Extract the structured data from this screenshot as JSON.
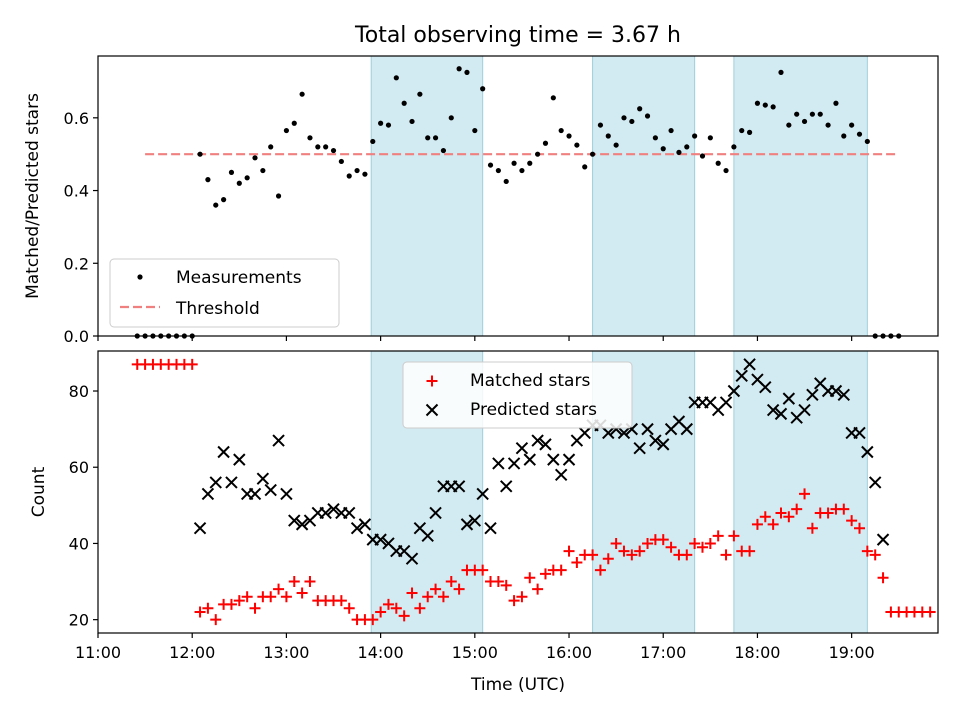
{
  "title": "Total observing time = 3.67 h",
  "chart_data": [
    {
      "type": "scatter",
      "ylabel": "Matched/Predicted stars",
      "xlim": [
        "11:00",
        "19:55"
      ],
      "ylim": [
        0,
        0.77
      ],
      "yticks": [
        0.0,
        0.2,
        0.4,
        0.6
      ],
      "yticklabels": [
        "0.0",
        "0.2",
        "0.4",
        "0.6"
      ],
      "grid": false,
      "legend_position": "lower-left",
      "legend": [
        "Measurements",
        "Threshold"
      ],
      "colors": {
        "measurements": "#000000",
        "threshold": "#f08080",
        "band": "#add8e6"
      },
      "threshold": {
        "value": 0.5,
        "x": [
          "11:30",
          "19:30"
        ]
      },
      "observing_windows": [
        [
          "13:54",
          "15:05"
        ],
        [
          "16:15",
          "17:20"
        ],
        [
          "17:45",
          "19:10"
        ]
      ],
      "measurements": [
        [
          "11:25",
          0.0
        ],
        [
          "11:30",
          0.0
        ],
        [
          "11:35",
          0.0
        ],
        [
          "11:40",
          0.0
        ],
        [
          "11:45",
          0.0
        ],
        [
          "11:50",
          0.0
        ],
        [
          "11:55",
          0.0
        ],
        [
          "12:00",
          0.0
        ],
        [
          "12:05",
          0.5
        ],
        [
          "12:10",
          0.43
        ],
        [
          "12:15",
          0.36
        ],
        [
          "12:20",
          0.375
        ],
        [
          "12:25",
          0.45
        ],
        [
          "12:30",
          0.42
        ],
        [
          "12:35",
          0.435
        ],
        [
          "12:40",
          0.49
        ],
        [
          "12:45",
          0.455
        ],
        [
          "12:50",
          0.52
        ],
        [
          "12:55",
          0.385
        ],
        [
          "13:00",
          0.565
        ],
        [
          "13:05",
          0.585
        ],
        [
          "13:10",
          0.665
        ],
        [
          "13:15",
          0.545
        ],
        [
          "13:20",
          0.52
        ],
        [
          "13:25",
          0.52
        ],
        [
          "13:30",
          0.51
        ],
        [
          "13:35",
          0.48
        ],
        [
          "13:40",
          0.44
        ],
        [
          "13:45",
          0.455
        ],
        [
          "13:50",
          0.445
        ],
        [
          "13:55",
          0.535
        ],
        [
          "14:00",
          0.585
        ],
        [
          "14:05",
          0.58
        ],
        [
          "14:10",
          0.71
        ],
        [
          "14:15",
          0.64
        ],
        [
          "14:20",
          0.59
        ],
        [
          "14:25",
          0.665
        ],
        [
          "14:30",
          0.545
        ],
        [
          "14:35",
          0.545
        ],
        [
          "14:40",
          0.51
        ],
        [
          "14:45",
          0.6
        ],
        [
          "14:50",
          0.735
        ],
        [
          "14:55",
          0.725
        ],
        [
          "15:00",
          0.565
        ],
        [
          "15:05",
          0.68
        ],
        [
          "15:10",
          0.47
        ],
        [
          "15:15",
          0.455
        ],
        [
          "15:20",
          0.425
        ],
        [
          "15:25",
          0.475
        ],
        [
          "15:30",
          0.455
        ],
        [
          "15:35",
          0.475
        ],
        [
          "15:40",
          0.5
        ],
        [
          "15:45",
          0.53
        ],
        [
          "15:50",
          0.655
        ],
        [
          "15:55",
          0.565
        ],
        [
          "16:00",
          0.55
        ],
        [
          "16:05",
          0.525
        ],
        [
          "16:10",
          0.465
        ],
        [
          "16:15",
          0.5
        ],
        [
          "16:20",
          0.58
        ],
        [
          "16:25",
          0.55
        ],
        [
          "16:30",
          0.525
        ],
        [
          "16:35",
          0.6
        ],
        [
          "16:40",
          0.59
        ],
        [
          "16:45",
          0.625
        ],
        [
          "16:50",
          0.605
        ],
        [
          "16:55",
          0.545
        ],
        [
          "17:00",
          0.515
        ],
        [
          "17:05",
          0.565
        ],
        [
          "17:10",
          0.505
        ],
        [
          "17:15",
          0.52
        ],
        [
          "17:20",
          0.55
        ],
        [
          "17:25",
          0.495
        ],
        [
          "17:30",
          0.545
        ],
        [
          "17:35",
          0.475
        ],
        [
          "17:40",
          0.455
        ],
        [
          "17:45",
          0.52
        ],
        [
          "17:50",
          0.565
        ],
        [
          "17:55",
          0.56
        ],
        [
          "18:00",
          0.64
        ],
        [
          "18:05",
          0.635
        ],
        [
          "18:10",
          0.63
        ],
        [
          "18:15",
          0.725
        ],
        [
          "18:20",
          0.58
        ],
        [
          "18:25",
          0.61
        ],
        [
          "18:30",
          0.59
        ],
        [
          "18:35",
          0.61
        ],
        [
          "18:40",
          0.61
        ],
        [
          "18:45",
          0.58
        ],
        [
          "18:50",
          0.64
        ],
        [
          "18:55",
          0.55
        ],
        [
          "19:00",
          0.58
        ],
        [
          "19:05",
          0.555
        ],
        [
          "19:10",
          0.535
        ],
        [
          "19:15",
          0.0
        ],
        [
          "19:20",
          0.0
        ],
        [
          "19:25",
          0.0
        ],
        [
          "19:30",
          0.0
        ]
      ]
    },
    {
      "type": "scatter",
      "xlabel": "Time (UTC)",
      "ylabel": "Count",
      "xlim": [
        "11:00",
        "19:55"
      ],
      "ylim": [
        16.5,
        90.5
      ],
      "xticklabels": [
        "11:00",
        "12:00",
        "13:00",
        "14:00",
        "15:00",
        "16:00",
        "17:00",
        "18:00",
        "19:00"
      ],
      "yticks": [
        20,
        40,
        60,
        80
      ],
      "yticklabels": [
        "20",
        "40",
        "60",
        "80"
      ],
      "grid": false,
      "legend_position": "upper-center",
      "legend": [
        "Matched stars",
        "Predicted stars"
      ],
      "colors": {
        "matched": "#ff0000",
        "predicted": "#000000",
        "band": "#add8e6"
      },
      "observing_windows": [
        [
          "13:54",
          "15:05"
        ],
        [
          "16:15",
          "17:20"
        ],
        [
          "17:45",
          "19:10"
        ]
      ],
      "matched": [
        [
          "11:25",
          87
        ],
        [
          "11:30",
          87
        ],
        [
          "11:35",
          87
        ],
        [
          "11:40",
          87
        ],
        [
          "11:45",
          87
        ],
        [
          "11:50",
          87
        ],
        [
          "11:55",
          87
        ],
        [
          "12:00",
          87
        ],
        [
          "12:05",
          22
        ],
        [
          "12:10",
          23
        ],
        [
          "12:15",
          20
        ],
        [
          "12:20",
          24
        ],
        [
          "12:25",
          24
        ],
        [
          "12:30",
          25
        ],
        [
          "12:35",
          26
        ],
        [
          "12:40",
          23
        ],
        [
          "12:45",
          26
        ],
        [
          "12:50",
          26
        ],
        [
          "12:55",
          28
        ],
        [
          "13:00",
          26
        ],
        [
          "13:05",
          30
        ],
        [
          "13:10",
          27
        ],
        [
          "13:15",
          30
        ],
        [
          "13:20",
          25
        ],
        [
          "13:25",
          25
        ],
        [
          "13:30",
          25
        ],
        [
          "13:35",
          25
        ],
        [
          "13:40",
          23
        ],
        [
          "13:45",
          20
        ],
        [
          "13:50",
          20
        ],
        [
          "13:55",
          20
        ],
        [
          "14:00",
          22
        ],
        [
          "14:05",
          24
        ],
        [
          "14:10",
          23
        ],
        [
          "14:15",
          21
        ],
        [
          "14:20",
          27
        ],
        [
          "14:25",
          23
        ],
        [
          "14:30",
          26
        ],
        [
          "14:35",
          28
        ],
        [
          "14:40",
          26
        ],
        [
          "14:45",
          30
        ],
        [
          "14:50",
          28
        ],
        [
          "14:55",
          33
        ],
        [
          "15:00",
          33
        ],
        [
          "15:05",
          33
        ],
        [
          "15:10",
          30
        ],
        [
          "15:15",
          30
        ],
        [
          "15:20",
          29
        ],
        [
          "15:25",
          25
        ],
        [
          "15:30",
          26
        ],
        [
          "15:35",
          31
        ],
        [
          "15:40",
          28
        ],
        [
          "15:45",
          32
        ],
        [
          "15:50",
          33
        ],
        [
          "15:55",
          33
        ],
        [
          "16:00",
          38
        ],
        [
          "16:05",
          35
        ],
        [
          "16:10",
          37
        ],
        [
          "16:15",
          37
        ],
        [
          "16:20",
          33
        ],
        [
          "16:25",
          36
        ],
        [
          "16:30",
          40
        ],
        [
          "16:35",
          38
        ],
        [
          "16:40",
          37
        ],
        [
          "16:45",
          38
        ],
        [
          "16:50",
          40
        ],
        [
          "16:55",
          41
        ],
        [
          "17:00",
          41
        ],
        [
          "17:05",
          39
        ],
        [
          "17:10",
          37
        ],
        [
          "17:15",
          37
        ],
        [
          "17:20",
          40
        ],
        [
          "17:25",
          39
        ],
        [
          "17:30",
          40
        ],
        [
          "17:35",
          42
        ],
        [
          "17:40",
          37
        ],
        [
          "17:45",
          42
        ],
        [
          "17:50",
          38
        ],
        [
          "17:55",
          38
        ],
        [
          "18:00",
          45
        ],
        [
          "18:05",
          47
        ],
        [
          "18:10",
          45
        ],
        [
          "18:15",
          48
        ],
        [
          "18:20",
          47
        ],
        [
          "18:25",
          49
        ],
        [
          "18:30",
          53
        ],
        [
          "18:35",
          44
        ],
        [
          "18:40",
          48
        ],
        [
          "18:45",
          48
        ],
        [
          "18:50",
          49
        ],
        [
          "18:55",
          49
        ],
        [
          "19:00",
          46
        ],
        [
          "19:05",
          44
        ],
        [
          "19:10",
          38
        ],
        [
          "19:15",
          37
        ],
        [
          "19:20",
          31
        ],
        [
          "19:25",
          22
        ],
        [
          "19:30",
          22
        ],
        [
          "19:35",
          22
        ],
        [
          "19:40",
          22
        ],
        [
          "19:45",
          22
        ],
        [
          "19:50",
          22
        ]
      ],
      "predicted": [
        [
          "12:05",
          44
        ],
        [
          "12:10",
          53
        ],
        [
          "12:15",
          56
        ],
        [
          "12:20",
          64
        ],
        [
          "12:25",
          56
        ],
        [
          "12:30",
          62
        ],
        [
          "12:35",
          53
        ],
        [
          "12:40",
          53
        ],
        [
          "12:45",
          57
        ],
        [
          "12:50",
          54
        ],
        [
          "12:55",
          67
        ],
        [
          "13:00",
          53
        ],
        [
          "13:05",
          46
        ],
        [
          "13:10",
          45
        ],
        [
          "13:15",
          46
        ],
        [
          "13:20",
          48
        ],
        [
          "13:25",
          48
        ],
        [
          "13:30",
          49
        ],
        [
          "13:35",
          48
        ],
        [
          "13:40",
          48
        ],
        [
          "13:45",
          44
        ],
        [
          "13:50",
          45
        ],
        [
          "13:55",
          41
        ],
        [
          "14:00",
          41
        ],
        [
          "14:05",
          40
        ],
        [
          "14:10",
          38
        ],
        [
          "14:15",
          38
        ],
        [
          "14:20",
          36
        ],
        [
          "14:25",
          44
        ],
        [
          "14:30",
          42
        ],
        [
          "14:35",
          48
        ],
        [
          "14:40",
          55
        ],
        [
          "14:45",
          55
        ],
        [
          "14:50",
          55
        ],
        [
          "14:55",
          45
        ],
        [
          "15:00",
          46
        ],
        [
          "15:05",
          53
        ],
        [
          "15:10",
          44
        ],
        [
          "15:15",
          61
        ],
        [
          "15:20",
          55
        ],
        [
          "15:25",
          61
        ],
        [
          "15:30",
          65
        ],
        [
          "15:35",
          62
        ],
        [
          "15:40",
          67
        ],
        [
          "15:45",
          66
        ],
        [
          "15:50",
          62
        ],
        [
          "15:55",
          58
        ],
        [
          "16:00",
          62
        ],
        [
          "16:05",
          67
        ],
        [
          "16:10",
          69
        ],
        [
          "16:15",
          71
        ],
        [
          "16:20",
          71
        ],
        [
          "16:25",
          69
        ],
        [
          "16:30",
          70
        ],
        [
          "16:35",
          69
        ],
        [
          "16:40",
          70
        ],
        [
          "16:45",
          65
        ],
        [
          "16:50",
          70
        ],
        [
          "16:55",
          67
        ],
        [
          "17:00",
          66
        ],
        [
          "17:05",
          70
        ],
        [
          "17:10",
          72
        ],
        [
          "17:15",
          70
        ],
        [
          "17:20",
          77
        ],
        [
          "17:25",
          77
        ],
        [
          "17:30",
          77
        ],
        [
          "17:35",
          75
        ],
        [
          "17:40",
          77
        ],
        [
          "17:45",
          80
        ],
        [
          "17:50",
          84
        ],
        [
          "17:55",
          87
        ],
        [
          "18:00",
          83
        ],
        [
          "18:05",
          81
        ],
        [
          "18:10",
          75
        ],
        [
          "18:15",
          74
        ],
        [
          "18:20",
          78
        ],
        [
          "18:25",
          73
        ],
        [
          "18:30",
          75
        ],
        [
          "18:35",
          79
        ],
        [
          "18:40",
          82
        ],
        [
          "18:45",
          80
        ],
        [
          "18:50",
          80
        ],
        [
          "18:55",
          79
        ],
        [
          "19:00",
          69
        ],
        [
          "19:05",
          69
        ],
        [
          "19:10",
          64
        ],
        [
          "19:15",
          56
        ],
        [
          "19:20",
          41
        ]
      ]
    }
  ]
}
